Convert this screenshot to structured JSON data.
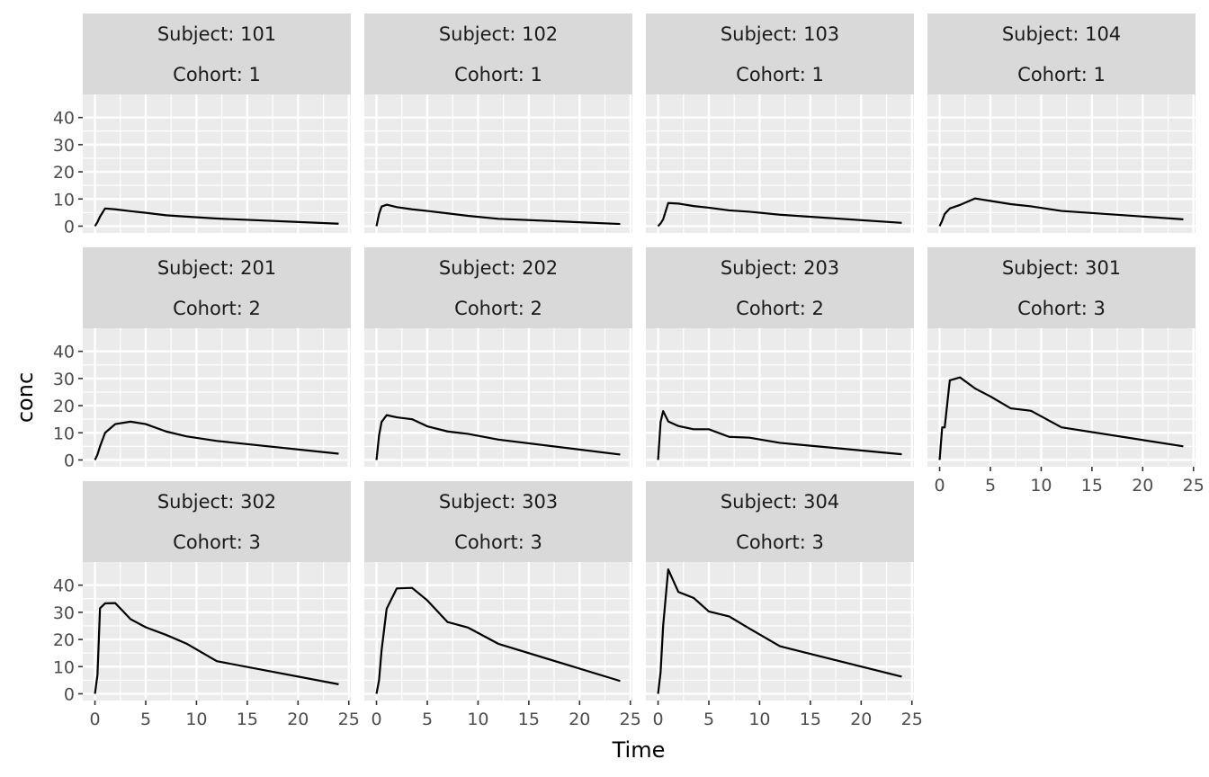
{
  "chart_data": {
    "type": "line",
    "facet_layout": "wrap",
    "xlabel": "Time",
    "ylabel": "conc",
    "xlim": [
      -1.2,
      25.2
    ],
    "ylim": [
      -2.5,
      48.5
    ],
    "x_ticks": [
      0,
      5,
      10,
      15,
      20,
      25
    ],
    "y_ticks": [
      0,
      10,
      20,
      30,
      40
    ],
    "grid": true,
    "colors": {
      "panel_bg": "#EBEBEB",
      "strip_bg": "#D9D9D9",
      "grid": "#FFFFFF",
      "line": "#000000",
      "text": "#4D4D4D",
      "title_text": "#000000"
    },
    "x": [
      0,
      0.25,
      0.5,
      1,
      2,
      3.5,
      5,
      7,
      9,
      12,
      24
    ],
    "panels": [
      {
        "strip": [
          "Subject: 101",
          "Cohort: 1"
        ],
        "values": [
          0,
          1.5,
          3.5,
          6.5,
          6.2,
          5.5,
          4.9,
          4.0,
          3.5,
          2.8,
          0.9
        ]
      },
      {
        "strip": [
          "Subject: 102",
          "Cohort: 1"
        ],
        "values": [
          0,
          4.5,
          7.2,
          7.9,
          7.0,
          6.2,
          5.6,
          4.7,
          3.8,
          2.7,
          0.8
        ]
      },
      {
        "strip": [
          "Subject: 103",
          "Cohort: 1"
        ],
        "values": [
          0,
          1.0,
          2.5,
          8.5,
          8.3,
          7.4,
          6.8,
          5.8,
          5.3,
          4.2,
          1.2
        ]
      },
      {
        "strip": [
          "Subject: 104",
          "Cohort: 1"
        ],
        "values": [
          0,
          2.0,
          4.5,
          6.5,
          7.8,
          10.2,
          9.3,
          8.1,
          7.3,
          5.6,
          2.5
        ]
      },
      {
        "strip": [
          "Subject: 201",
          "Cohort: 2"
        ],
        "values": [
          0,
          2.0,
          5.0,
          10.0,
          13.2,
          14.1,
          13.2,
          10.5,
          8.7,
          7.0,
          2.3
        ]
      },
      {
        "strip": [
          "Subject: 202",
          "Cohort: 2"
        ],
        "values": [
          0,
          9.0,
          14.0,
          16.5,
          15.7,
          15.0,
          12.4,
          10.5,
          9.6,
          7.5,
          2.0
        ]
      },
      {
        "strip": [
          "Subject: 203",
          "Cohort: 2"
        ],
        "values": [
          0,
          14.0,
          18.0,
          14.2,
          12.5,
          11.3,
          11.3,
          8.5,
          8.2,
          6.3,
          2.1
        ]
      },
      {
        "strip": [
          "Subject: 301",
          "Cohort: 3"
        ],
        "values": [
          0,
          12.0,
          12.0,
          29.3,
          30.4,
          26.3,
          23.4,
          19.0,
          18.1,
          12.0,
          5.0
        ]
      },
      {
        "strip": [
          "Subject: 302",
          "Cohort: 3"
        ],
        "values": [
          0,
          7.0,
          31.5,
          33.3,
          33.4,
          27.5,
          24.5,
          21.7,
          18.5,
          12.0,
          3.5
        ]
      },
      {
        "strip": [
          "Subject: 303",
          "Cohort: 3"
        ],
        "values": [
          0,
          5.0,
          16.0,
          31.3,
          38.8,
          39.0,
          34.4,
          26.4,
          24.4,
          18.4,
          4.7
        ]
      },
      {
        "strip": [
          "Subject: 304",
          "Cohort: 3"
        ],
        "values": [
          0,
          8.0,
          25.0,
          45.8,
          37.5,
          35.3,
          30.3,
          28.5,
          24.0,
          17.5,
          6.3
        ]
      }
    ]
  }
}
